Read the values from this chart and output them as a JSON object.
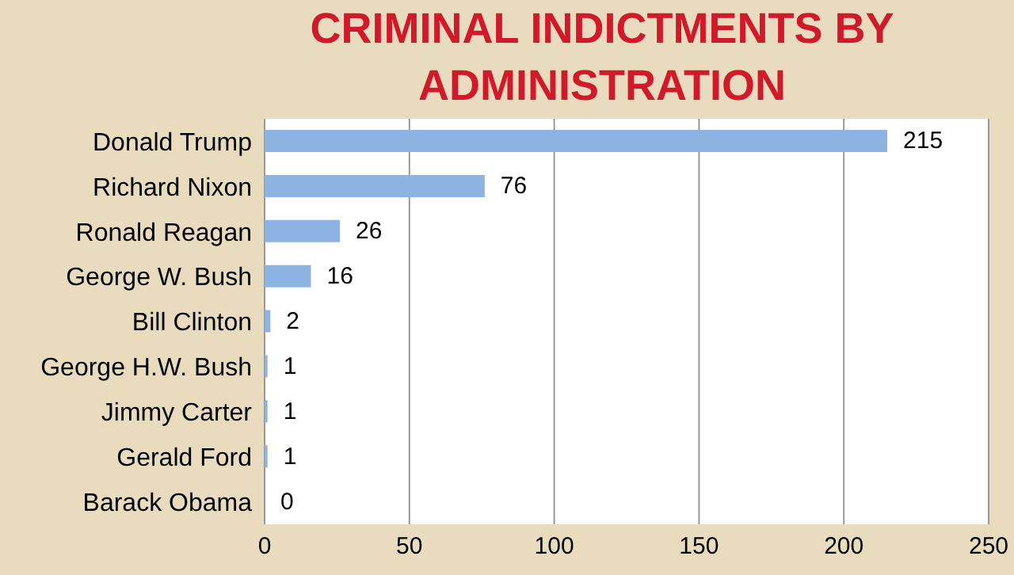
{
  "chart_data": {
    "type": "bar",
    "orientation": "horizontal",
    "title": "CRIMINAL INDICTMENTS BY ADMINISTRATION",
    "categories": [
      "Donald Trump",
      "Richard Nixon",
      "Ronald Reagan",
      "George W. Bush",
      "Bill Clinton",
      "George H.W. Bush",
      "Jimmy Carter",
      "Gerald Ford",
      "Barack Obama"
    ],
    "values": [
      215,
      76,
      26,
      16,
      2,
      1,
      1,
      1,
      0
    ],
    "color": "#8db3e2",
    "xlim": [
      0,
      250
    ],
    "xticks": [
      0,
      50,
      100,
      150,
      200,
      250
    ],
    "grid": "x",
    "data_labels": true
  }
}
